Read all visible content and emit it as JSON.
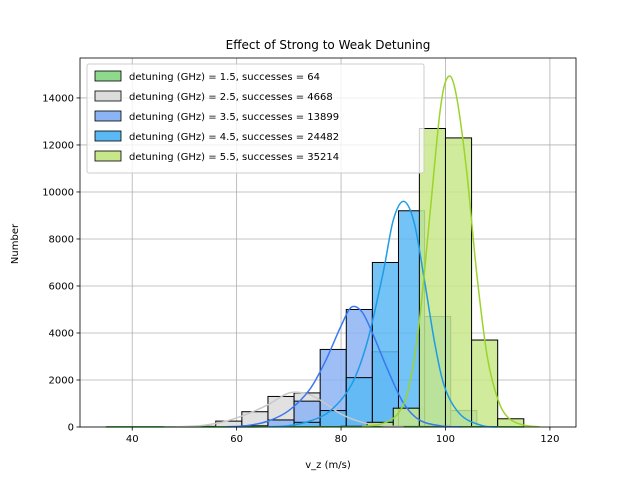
{
  "chart_data": {
    "type": "histogram",
    "title": "Effect of Strong to Weak Detuning",
    "xlabel": "v_z (m/s)",
    "ylabel": "Number",
    "xlim": [
      30,
      125
    ],
    "ylim": [
      0,
      15700
    ],
    "x_ticks": [
      "40",
      "60",
      "80",
      "100",
      "120"
    ],
    "x_tick_values": [
      40,
      60,
      80,
      100,
      120
    ],
    "y_ticks": [
      "0",
      "2000",
      "4000",
      "6000",
      "8000",
      "10000",
      "12000",
      "14000"
    ],
    "y_tick_values": [
      0,
      2000,
      4000,
      6000,
      8000,
      10000,
      12000,
      14000
    ],
    "grid": true,
    "legend_position": "top-left",
    "series": [
      {
        "name": "detuning (GHz) = 1.5, successes = 64",
        "fill": "#8ed98e",
        "line": "#2ca02c",
        "bins": [
          {
            "x0": 35,
            "x1": 45,
            "count": 3
          },
          {
            "x0": 45,
            "x1": 55,
            "count": 3
          },
          {
            "x0": 55,
            "x1": 65,
            "count": 6
          },
          {
            "x0": 65,
            "x1": 75,
            "count": 8
          },
          {
            "x0": 75,
            "x1": 85,
            "count": 10
          },
          {
            "x0": 85,
            "x1": 95,
            "count": 14
          },
          {
            "x0": 95,
            "x1": 105,
            "count": 12
          },
          {
            "x0": 105,
            "x1": 115,
            "count": 8
          }
        ],
        "kde": [
          [
            35,
            3
          ],
          [
            45,
            5
          ],
          [
            55,
            6
          ],
          [
            65,
            8
          ],
          [
            75,
            10
          ],
          [
            85,
            13
          ],
          [
            95,
            14
          ],
          [
            105,
            10
          ],
          [
            115,
            6
          ]
        ]
      },
      {
        "name": "detuning (GHz) = 2.5, successes = 4668",
        "fill": "#dcdcdc",
        "line": "#c8c8c8",
        "bins": [
          {
            "x0": 51,
            "x1": 56,
            "count": 30
          },
          {
            "x0": 56,
            "x1": 61,
            "count": 250
          },
          {
            "x0": 61,
            "x1": 66,
            "count": 650
          },
          {
            "x0": 66,
            "x1": 71,
            "count": 1300
          },
          {
            "x0": 71,
            "x1": 76,
            "count": 1450
          },
          {
            "x0": 76,
            "x1": 81,
            "count": 650
          },
          {
            "x0": 81,
            "x1": 86,
            "count": 200
          },
          {
            "x0": 86,
            "x1": 91,
            "count": 60
          }
        ],
        "kde": [
          [
            46,
            0
          ],
          [
            50,
            20
          ],
          [
            54,
            80
          ],
          [
            58,
            250
          ],
          [
            62,
            550
          ],
          [
            66,
            950
          ],
          [
            69,
            1350
          ],
          [
            71,
            1480
          ],
          [
            74,
            1380
          ],
          [
            77,
            1000
          ],
          [
            80,
            550
          ],
          [
            84,
            200
          ],
          [
            88,
            60
          ],
          [
            92,
            10
          ]
        ]
      },
      {
        "name": "detuning (GHz) = 3.5, successes = 13899",
        "fill": "#8cb4f5",
        "line": "#3a78ee",
        "bins": [
          {
            "x0": 61,
            "x1": 66,
            "count": 50
          },
          {
            "x0": 66,
            "x1": 71,
            "count": 300
          },
          {
            "x0": 71,
            "x1": 76,
            "count": 1100
          },
          {
            "x0": 76,
            "x1": 81,
            "count": 3300
          },
          {
            "x0": 81,
            "x1": 86,
            "count": 5000
          },
          {
            "x0": 86,
            "x1": 91,
            "count": 3200
          },
          {
            "x0": 91,
            "x1": 96,
            "count": 800
          },
          {
            "x0": 96,
            "x1": 101,
            "count": 100
          }
        ],
        "kde": [
          [
            58,
            10
          ],
          [
            62,
            60
          ],
          [
            66,
            250
          ],
          [
            70,
            700
          ],
          [
            74,
            1600
          ],
          [
            77,
            2800
          ],
          [
            80,
            4300
          ],
          [
            82,
            5100
          ],
          [
            84,
            4900
          ],
          [
            86,
            4000
          ],
          [
            89,
            2400
          ],
          [
            92,
            1000
          ],
          [
            95,
            300
          ],
          [
            99,
            50
          ],
          [
            103,
            5
          ]
        ]
      },
      {
        "name": "detuning (GHz) = 4.5, successes = 24482",
        "fill": "#5ab8f5",
        "line": "#1e9be6",
        "bins": [
          {
            "x0": 66,
            "x1": 71,
            "count": 20
          },
          {
            "x0": 71,
            "x1": 76,
            "count": 200
          },
          {
            "x0": 76,
            "x1": 81,
            "count": 700
          },
          {
            "x0": 81,
            "x1": 86,
            "count": 2100
          },
          {
            "x0": 86,
            "x1": 91,
            "count": 7000
          },
          {
            "x0": 91,
            "x1": 96,
            "count": 9200
          },
          {
            "x0": 96,
            "x1": 101,
            "count": 4700
          },
          {
            "x0": 101,
            "x1": 106,
            "count": 700
          }
        ],
        "kde": [
          [
            66,
            10
          ],
          [
            70,
            60
          ],
          [
            74,
            250
          ],
          [
            78,
            700
          ],
          [
            82,
            1800
          ],
          [
            85,
            3600
          ],
          [
            88,
            6500
          ],
          [
            90,
            8800
          ],
          [
            92,
            9600
          ],
          [
            94,
            8700
          ],
          [
            96,
            6200
          ],
          [
            98,
            3500
          ],
          [
            100,
            1600
          ],
          [
            103,
            500
          ],
          [
            107,
            60
          ],
          [
            110,
            5
          ]
        ]
      },
      {
        "name": "detuning (GHz) = 5.5, successes = 35214",
        "fill": "#c8e78a",
        "line": "#9bd42a",
        "bins": [
          {
            "x0": 80,
            "x1": 85,
            "count": 30
          },
          {
            "x0": 85,
            "x1": 90,
            "count": 200
          },
          {
            "x0": 90,
            "x1": 95,
            "count": 800
          },
          {
            "x0": 95,
            "x1": 100,
            "count": 12700
          },
          {
            "x0": 100,
            "x1": 105,
            "count": 12300
          },
          {
            "x0": 105,
            "x1": 110,
            "count": 3700
          },
          {
            "x0": 110,
            "x1": 115,
            "count": 350
          }
        ],
        "kde": [
          [
            84,
            20
          ],
          [
            88,
            150
          ],
          [
            91,
            600
          ],
          [
            93,
            1700
          ],
          [
            95,
            4500
          ],
          [
            97,
            9000
          ],
          [
            99,
            13500
          ],
          [
            100.5,
            14900
          ],
          [
            102,
            14200
          ],
          [
            104,
            11000
          ],
          [
            106,
            6500
          ],
          [
            108,
            3000
          ],
          [
            110,
            1200
          ],
          [
            112,
            400
          ],
          [
            115,
            80
          ],
          [
            118,
            10
          ]
        ]
      }
    ]
  }
}
